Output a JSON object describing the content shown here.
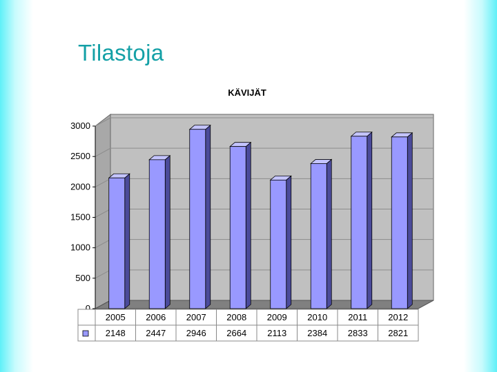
{
  "slide": {
    "title": "Tilastoja"
  },
  "chart_data": {
    "type": "bar",
    "title": "KÄVIJÄT",
    "categories": [
      "2005",
      "2006",
      "2007",
      "2008",
      "2009",
      "2010",
      "2011",
      "2012"
    ],
    "values": [
      2148,
      2447,
      2946,
      2664,
      2113,
      2384,
      2833,
      2821
    ],
    "ylim": [
      0,
      3000
    ],
    "yticks": [
      0,
      500,
      1000,
      1500,
      2000,
      2500,
      3000
    ],
    "grid": true,
    "legend": "data-table",
    "colors": {
      "bar_front": "#9999ff",
      "bar_side": "#4b4b9a",
      "bar_top": "#c4c4ff",
      "wall": "#c0c0c0",
      "floor": "#808080"
    }
  }
}
